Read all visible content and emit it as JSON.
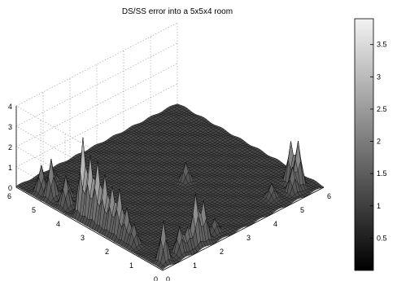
{
  "chart_data": {
    "type": "surface",
    "title": "DS/SS error into a 5x5x4 room",
    "xlabel": "",
    "ylabel": "",
    "zlabel": "",
    "xlim": [
      0,
      6
    ],
    "ylim": [
      0,
      6
    ],
    "zlim": [
      0,
      4
    ],
    "x_ticks": [
      "0",
      "1",
      "2",
      "3",
      "4",
      "5",
      "6"
    ],
    "y_ticks": [
      "0",
      "1",
      "2",
      "3",
      "4",
      "5",
      "6"
    ],
    "z_ticks": [
      "0",
      "1",
      "2",
      "3",
      "4"
    ],
    "grid": true,
    "colormap": "gray",
    "colorbar": {
      "range": [
        0,
        3.9
      ],
      "ticks": [
        "0.5",
        "1",
        "1.5",
        "2",
        "2.5",
        "3",
        "3.5"
      ],
      "tick_values": [
        0.5,
        1,
        1.5,
        2,
        2.5,
        3,
        3.5
      ]
    },
    "peaks": [
      {
        "x": 0.3,
        "y": 3.6,
        "z": 3.8
      },
      {
        "x": 0.3,
        "y": 3.3,
        "z": 3.1
      },
      {
        "x": 0.3,
        "y": 3.0,
        "z": 3.0
      },
      {
        "x": 0.3,
        "y": 2.7,
        "z": 2.6
      },
      {
        "x": 0.3,
        "y": 2.4,
        "z": 2.2
      },
      {
        "x": 0.3,
        "y": 2.1,
        "z": 2.3
      },
      {
        "x": 0.3,
        "y": 1.8,
        "z": 1.6
      },
      {
        "x": 0.3,
        "y": 1.5,
        "z": 1.0
      },
      {
        "x": 0.3,
        "y": 4.3,
        "z": 1.5
      },
      {
        "x": 0.6,
        "y": 3.7,
        "z": 1.6
      },
      {
        "x": 0.3,
        "y": 5.3,
        "z": 1.3
      },
      {
        "x": 0.3,
        "y": 4.9,
        "z": 1.9
      },
      {
        "x": 0.9,
        "y": 5.5,
        "z": 0.6
      },
      {
        "x": 0.6,
        "y": 4.6,
        "z": 0.9
      },
      {
        "x": 1.5,
        "y": 0.3,
        "z": 2.5
      },
      {
        "x": 1.8,
        "y": 0.3,
        "z": 1.9
      },
      {
        "x": 0.3,
        "y": 0.3,
        "z": 2.0
      },
      {
        "x": 1.2,
        "y": 0.3,
        "z": 1.0
      },
      {
        "x": 0.9,
        "y": 0.3,
        "z": 1.3
      },
      {
        "x": 5.5,
        "y": 0.5,
        "z": 2.2
      },
      {
        "x": 5.5,
        "y": 0.8,
        "z": 2.0
      },
      {
        "x": 5.2,
        "y": 0.4,
        "z": 1.2
      },
      {
        "x": 3.5,
        "y": 2.9,
        "z": 0.9
      },
      {
        "x": 4.6,
        "y": 0.6,
        "z": 0.7
      },
      {
        "x": 2.3,
        "y": 0.4,
        "z": 0.7
      }
    ]
  }
}
